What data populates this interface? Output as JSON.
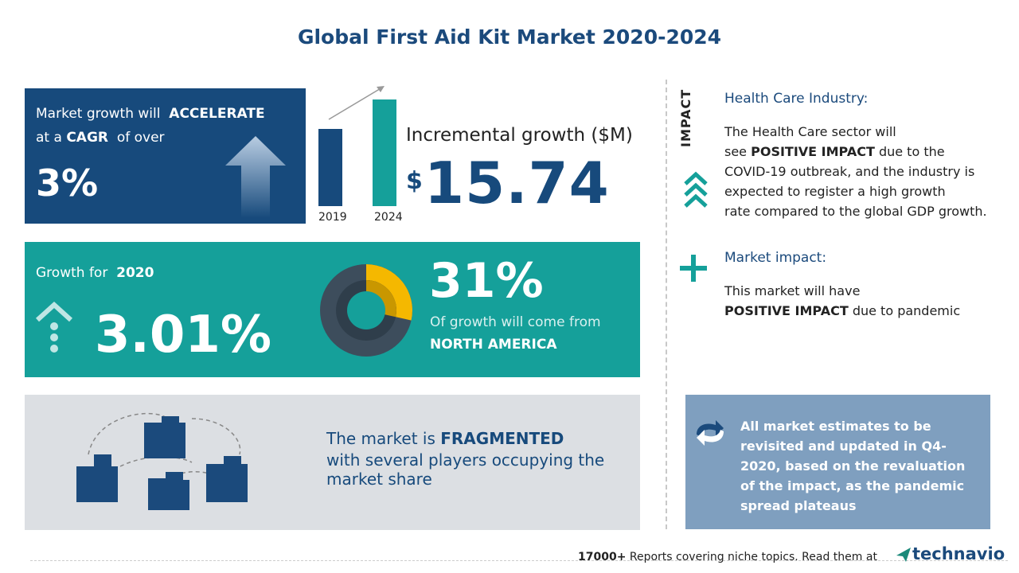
{
  "title": "Global First Aid Kit Market 2020-2024",
  "cagr": {
    "pre1": "Market growth will",
    "bold1": "ACCELERATE",
    "pre2": "at a",
    "bold2": "CAGR",
    "post2": "of over",
    "value": "3%"
  },
  "incremental": {
    "label": "Incremental growth ($M)",
    "currency": "$",
    "value": "15.74",
    "years": [
      "2019",
      "2024"
    ]
  },
  "growth_2020": {
    "label": "Growth for",
    "year": "2020",
    "value": "3.01%"
  },
  "region": {
    "share": "31%",
    "text": "Of growth will come from",
    "name": "NORTH AMERICA"
  },
  "fragmented": {
    "prefix": "The market is",
    "bold": "FRAGMENTED",
    "line2": "with several players occupying the",
    "line3": "market share"
  },
  "impact": {
    "label": "IMPACT",
    "heading": "Health Care Industry:",
    "line1": "The Health Care sector will",
    "line2_pre": "see",
    "line2_bold": "POSITIVE IMPACT",
    "line2_post": "due to the",
    "line3": "COVID-19 outbreak, and the industry is",
    "line4": "expected to register a high growth",
    "line5": "rate compared to the global GDP growth."
  },
  "market_impact": {
    "heading": "Market impact:",
    "line1": "This market will have",
    "bold": "POSITIVE IMPACT",
    "post": "due to pandemic"
  },
  "note": {
    "lines": [
      "All market estimates to be",
      "revisited and updated in Q4-",
      "2020, based on the revaluation",
      "of the impact, as the pandemic",
      "spread plateaus"
    ]
  },
  "footer": {
    "count": "17000+",
    "text": "Reports covering niche topics. Read them at",
    "brand": "technavio"
  }
}
